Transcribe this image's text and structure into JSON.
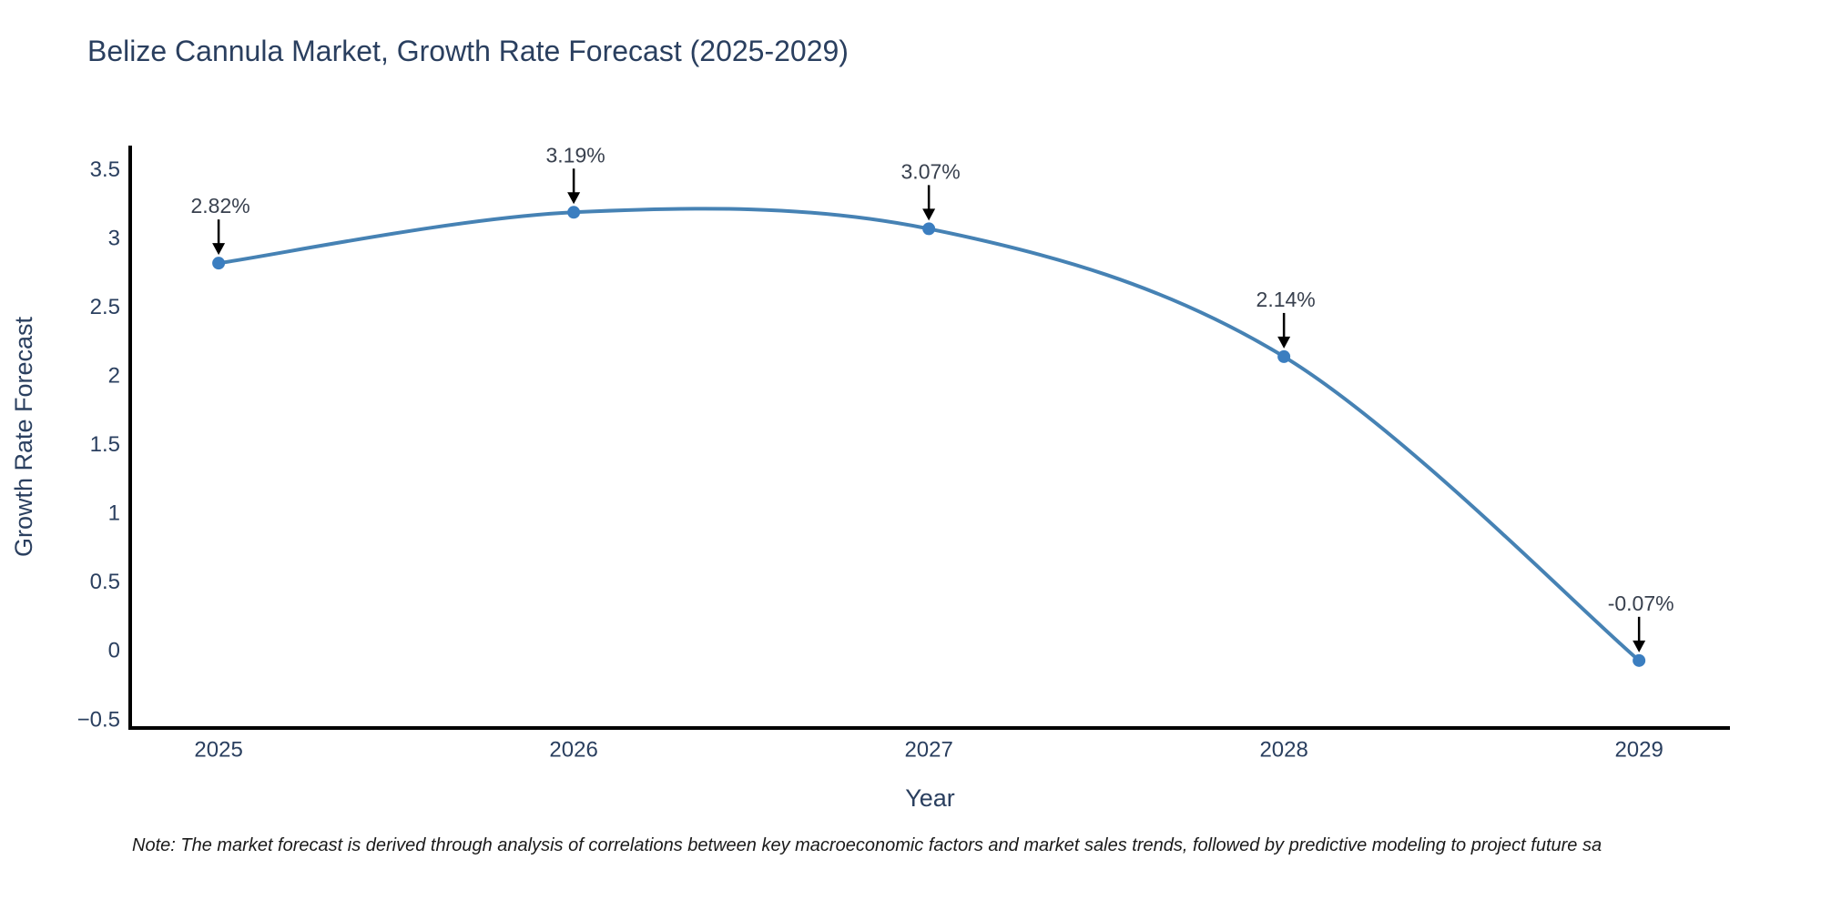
{
  "header": {
    "title": "Belize Cannula Market, Growth Rate Forecast (2025-2029)"
  },
  "chart_data": {
    "type": "line",
    "title": "Belize Cannula Market, Growth Rate Forecast (2025-2029)",
    "xlabel": "Year",
    "ylabel": "Growth Rate Forecast",
    "categories": [
      2025,
      2026,
      2027,
      2028,
      2029
    ],
    "values": [
      2.82,
      3.19,
      3.07,
      2.14,
      -0.07
    ],
    "point_labels": [
      "2.82%",
      "3.19%",
      "3.07%",
      "2.14%",
      "-0.07%"
    ],
    "xtick_labels": [
      "2025",
      "2026",
      "2027",
      "2028",
      "2029"
    ],
    "yticks": [
      3.5,
      3,
      2.5,
      2,
      1.5,
      1,
      0.5,
      0,
      -0.5
    ],
    "ytick_labels": [
      "3.5",
      "3",
      "2.5",
      "2",
      "1.5",
      "1",
      "0.5",
      "0",
      "−0.5"
    ],
    "xlim": [
      2024.751,
      2029.256
    ],
    "ylim": [
      -0.561,
      3.675
    ],
    "grid": false,
    "legend_position": "none",
    "line_shape": "spline",
    "colors": {
      "line": "#4682b4",
      "marker": "#3b7ec0",
      "axis_line": "#000000",
      "tick_text": "#2a3f5f",
      "axis_title_text": "#2a3f5f",
      "annotation_text": "#38404e",
      "annotation_arrow": "#000000",
      "title_text": "#2a3f5f"
    }
  },
  "note": {
    "text": "Note: The market forecast is derived through analysis of correlations between key macroeconomic factors and market sales trends, followed by predictive modeling to project future sa"
  }
}
